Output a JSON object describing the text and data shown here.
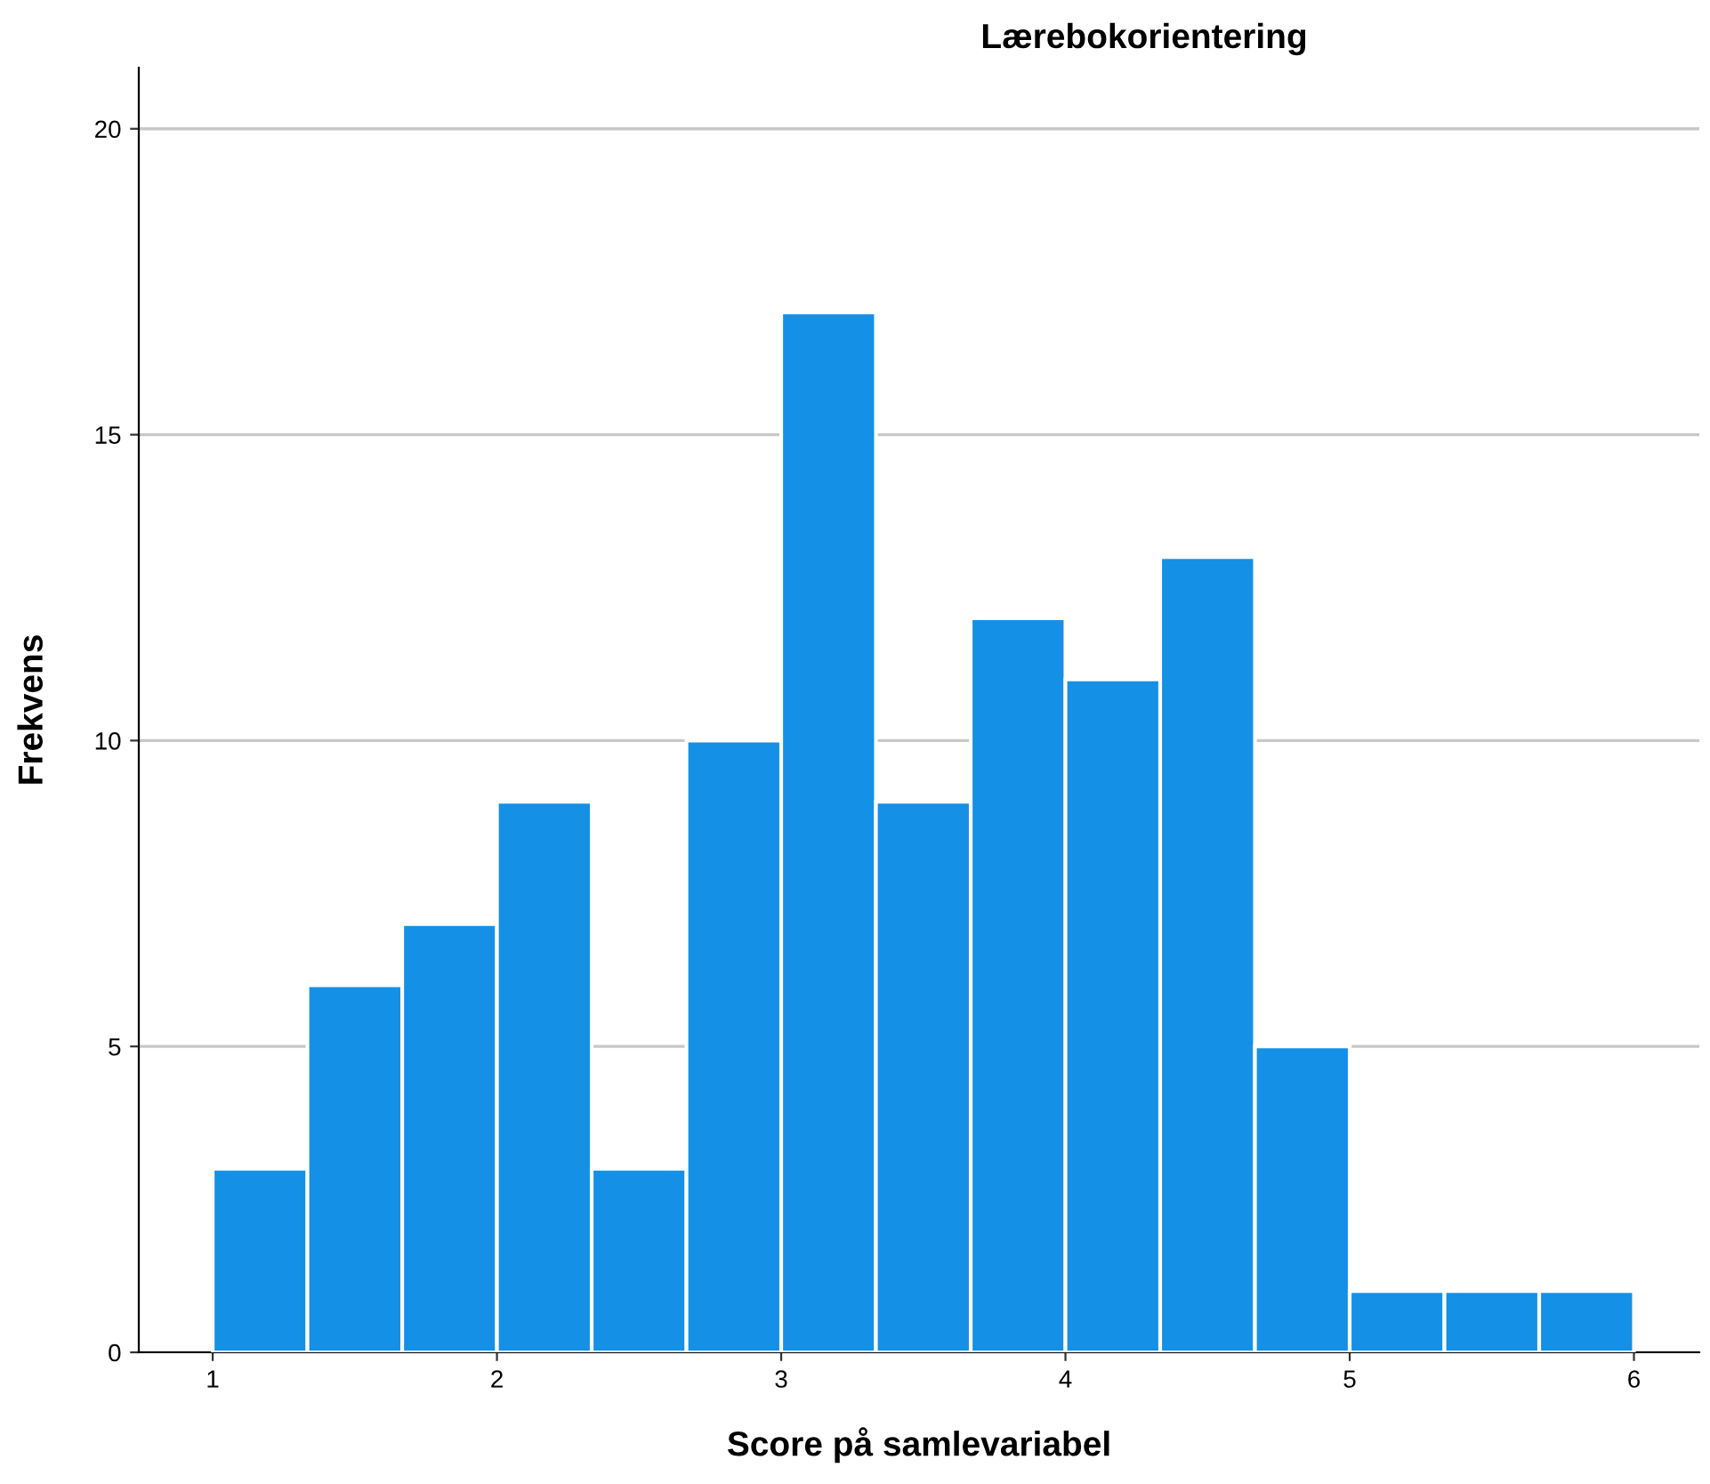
{
  "chart_data": {
    "type": "histogram",
    "title": "Lærebokorientering",
    "xlabel": "Score på samlevariabel",
    "ylabel": "Frekvens",
    "bins": [
      1,
      1.3333,
      1.6667,
      2,
      2.3333,
      2.6667,
      3,
      3.3333,
      3.6667,
      4,
      4.3333,
      4.6667,
      5,
      5.3333,
      5.6667,
      6
    ],
    "values": [
      3,
      6,
      7,
      9,
      3,
      10,
      17,
      9,
      12,
      11,
      13,
      5,
      1,
      1,
      1
    ],
    "color": "#1490e6",
    "xlim": [
      0.74,
      6.23
    ],
    "xticks": [
      1,
      2,
      3,
      4,
      5,
      6
    ],
    "ylim": [
      0,
      21
    ],
    "yticks": [
      0,
      5,
      10,
      15,
      20
    ],
    "grid": "y"
  }
}
